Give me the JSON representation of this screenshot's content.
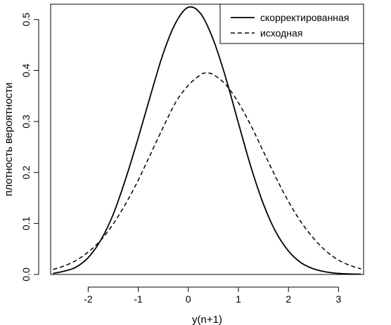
{
  "chart_data": {
    "type": "line",
    "title": "",
    "xlabel": "y(n+1)",
    "ylabel": "плотность вероятности",
    "xlim": [
      -2.75,
      3.5
    ],
    "ylim": [
      0,
      0.53
    ],
    "x_ticks": [
      -2,
      -1,
      0,
      1,
      2,
      3
    ],
    "x_tick_labels": [
      "-2",
      "-1",
      "0",
      "1",
      "2",
      "3"
    ],
    "y_ticks": [
      0.0,
      0.1,
      0.2,
      0.3,
      0.4,
      0.5
    ],
    "y_tick_labels": [
      "0.0",
      "0.1",
      "0.2",
      "0.3",
      "0.4",
      "0.5"
    ],
    "grid": false,
    "legend_position": "top-right",
    "series": [
      {
        "name": "скорректированная",
        "style": "solid",
        "color": "#000000",
        "x": [
          -2.7,
          -2.5,
          -2.25,
          -2.0,
          -1.75,
          -1.5,
          -1.25,
          -1.0,
          -0.75,
          -0.5,
          -0.25,
          0.0,
          0.25,
          0.5,
          0.75,
          1.0,
          1.25,
          1.5,
          1.75,
          2.0,
          2.25,
          2.5,
          2.75,
          3.0,
          3.25,
          3.45
        ],
        "y": [
          0.002,
          0.006,
          0.014,
          0.033,
          0.067,
          0.118,
          0.188,
          0.268,
          0.353,
          0.434,
          0.494,
          0.524,
          0.511,
          0.46,
          0.385,
          0.297,
          0.211,
          0.138,
          0.083,
          0.046,
          0.023,
          0.011,
          0.005,
          0.002,
          0.001,
          0.0005
        ]
      },
      {
        "name": "исходная",
        "style": "dashed",
        "color": "#000000",
        "x": [
          -2.7,
          -2.5,
          -2.25,
          -2.0,
          -1.75,
          -1.5,
          -1.25,
          -1.0,
          -0.75,
          -0.5,
          -0.25,
          0.0,
          0.25,
          0.35,
          0.5,
          0.75,
          1.0,
          1.25,
          1.5,
          1.75,
          2.0,
          2.25,
          2.5,
          2.75,
          3.0,
          3.25,
          3.45
        ],
        "y": [
          0.01,
          0.016,
          0.027,
          0.044,
          0.067,
          0.099,
          0.139,
          0.185,
          0.237,
          0.289,
          0.338,
          0.371,
          0.392,
          0.395,
          0.392,
          0.372,
          0.337,
          0.292,
          0.241,
          0.19,
          0.143,
          0.103,
          0.071,
          0.046,
          0.028,
          0.017,
          0.011
        ]
      }
    ]
  }
}
